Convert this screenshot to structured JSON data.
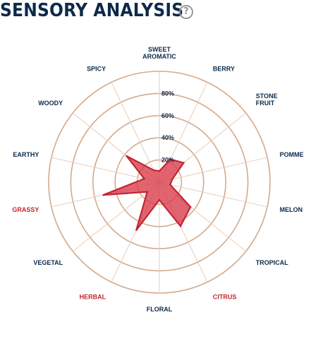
{
  "header": {
    "title": "SENSORY ANALYSIS",
    "help_icon_glyph": "?"
  },
  "colors": {
    "title": "#0d2a4a",
    "ring": "#d4a98a",
    "spoke": "#e6cdbb",
    "fill": "#d93a48",
    "stroke": "#c22434",
    "label": "#0d2a4a",
    "highlight": "#c1272d"
  },
  "chart_data": {
    "type": "radar",
    "title": "SENSORY ANALYSIS",
    "rlim": [
      0,
      100
    ],
    "ring_values": [
      20,
      40,
      60,
      80,
      100
    ],
    "tick_labels": [
      {
        "value": 20,
        "label": "20%"
      },
      {
        "value": 40,
        "label": "40%"
      },
      {
        "value": 60,
        "label": "60%"
      },
      {
        "value": 80,
        "label": "80%"
      }
    ],
    "axes": [
      {
        "label": [
          "SWEET",
          "AROMATIC"
        ],
        "value": 10,
        "highlight": false
      },
      {
        "label": [
          "BERRY"
        ],
        "value": 23,
        "highlight": false
      },
      {
        "label": [
          "STONE",
          "FRUIT"
        ],
        "value": 28,
        "highlight": false
      },
      {
        "label": [
          "POMME"
        ],
        "value": 12,
        "highlight": false
      },
      {
        "label": [
          "MELON"
        ],
        "value": 10,
        "highlight": false
      },
      {
        "label": [
          "TROPICAL"
        ],
        "value": 36,
        "highlight": false
      },
      {
        "label": [
          "CITRUS"
        ],
        "value": 44,
        "highlight": true
      },
      {
        "label": [
          "FLORAL"
        ],
        "value": 16,
        "highlight": false
      },
      {
        "label": [
          "HERBAL"
        ],
        "value": 48,
        "highlight": true
      },
      {
        "label": [
          "VEGETAL"
        ],
        "value": 14,
        "highlight": false
      },
      {
        "label": [
          "GRASSY"
        ],
        "value": 52,
        "highlight": true
      },
      {
        "label": [
          "EARTHY"
        ],
        "value": 14,
        "highlight": false
      },
      {
        "label": [
          "WOODY"
        ],
        "value": 38,
        "highlight": false
      },
      {
        "label": [
          "SPICY"
        ],
        "value": 12,
        "highlight": false
      }
    ]
  }
}
